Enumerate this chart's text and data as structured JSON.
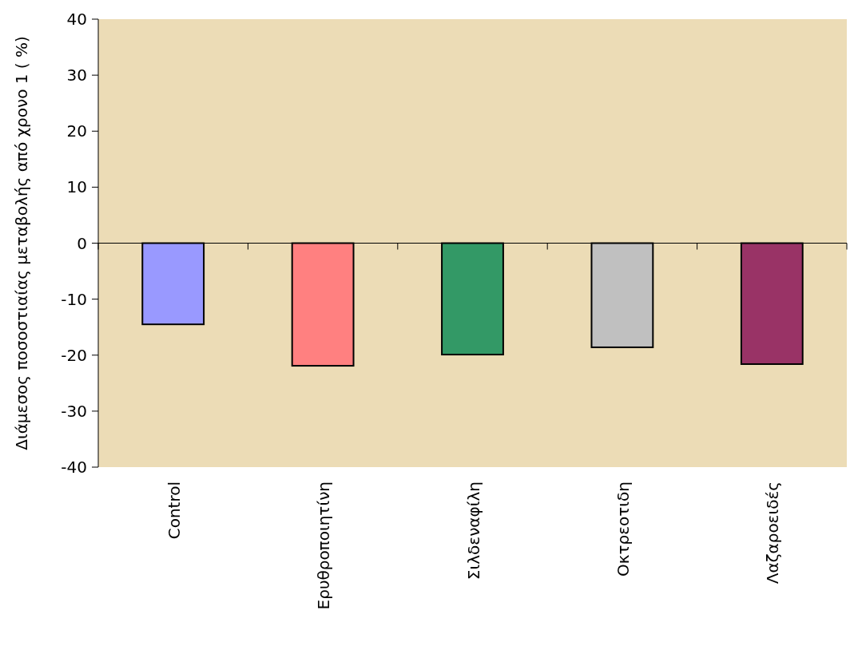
{
  "chart_data": {
    "type": "bar",
    "ylabel": "Διάμεσος ποσοστιαίας μεταβολής από χρονο 1  ( %)",
    "categories": [
      "Control",
      "Ερυθροποιητίνη",
      "Σιλδεναφίλη",
      "Οκτρεοτιδη",
      "Λαζαροειδές"
    ],
    "values": [
      -14.5,
      -21.9,
      -19.9,
      -18.6,
      -21.6
    ],
    "colors": [
      "#9999ff",
      "#ff8080",
      "#339966",
      "#c0c0c0",
      "#993366"
    ],
    "ylim": [
      -40,
      40
    ],
    "yticks": [
      -40,
      -30,
      -20,
      -10,
      0,
      10,
      20,
      30,
      40
    ]
  }
}
